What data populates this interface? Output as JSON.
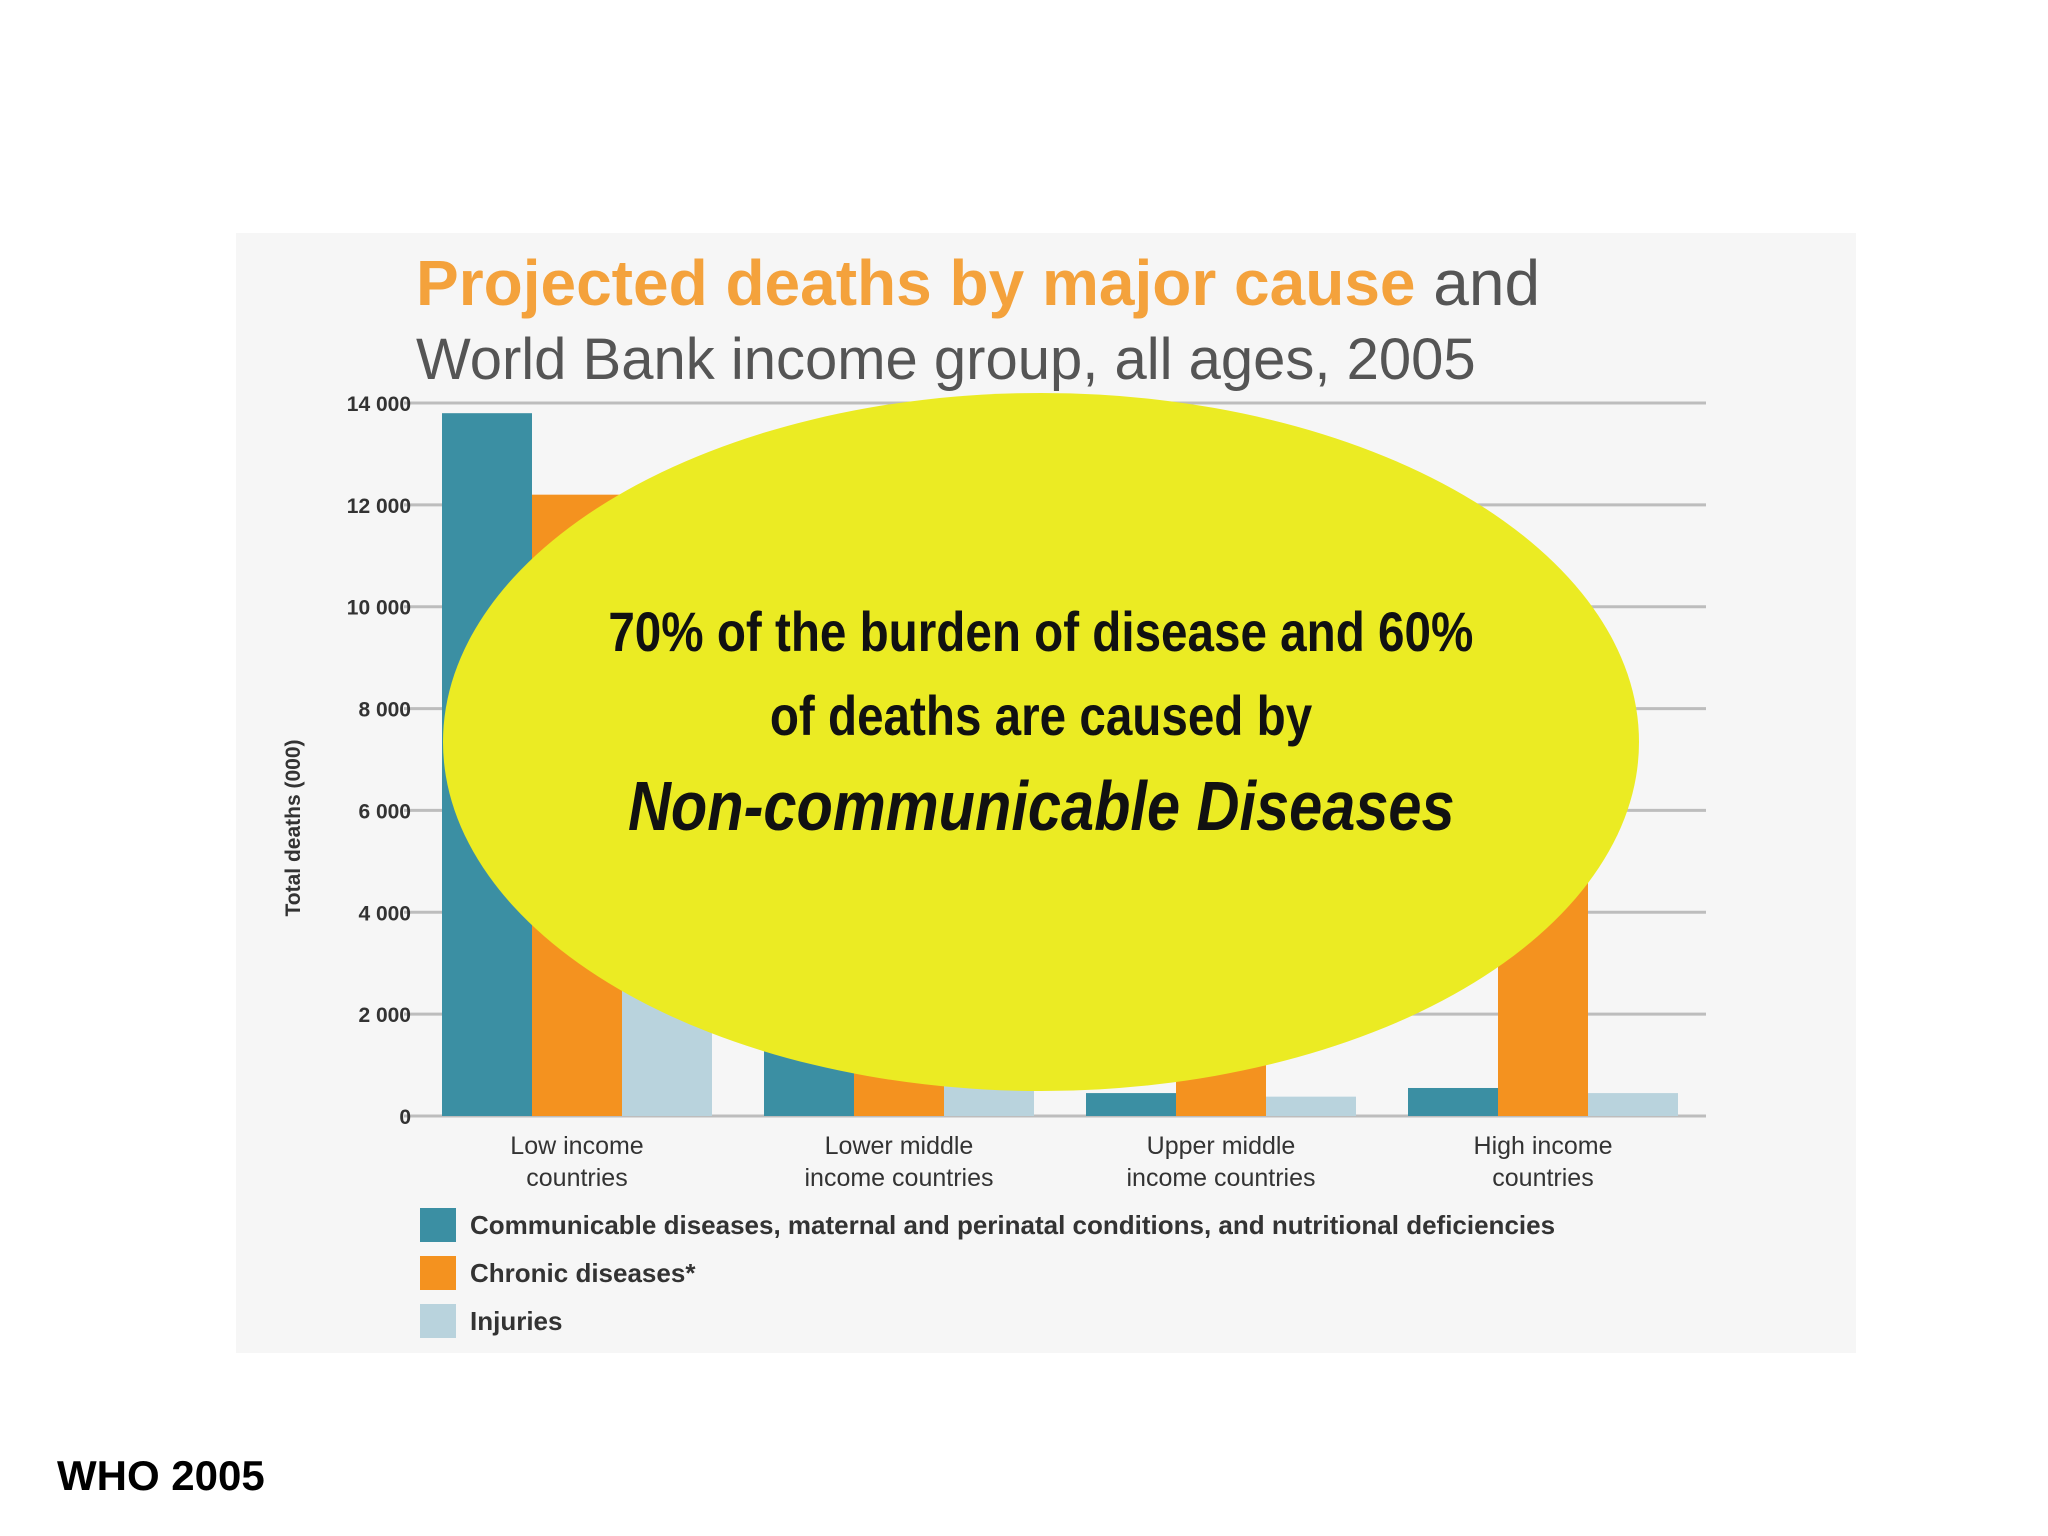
{
  "chart_data": {
    "type": "bar",
    "title_highlight": "Projected deaths by major cause",
    "title_rest": " and",
    "subtitle": "World Bank income group, all ages, 2005",
    "ylabel": "Total deaths (000)",
    "ylim": [
      0,
      14000
    ],
    "yticks": [
      0,
      2000,
      4000,
      6000,
      8000,
      10000,
      12000,
      14000
    ],
    "ytick_labels": [
      "0",
      "2 000",
      "4 000",
      "6 000",
      "8 000",
      "10 000",
      "12 000",
      "14 000"
    ],
    "categories": [
      [
        "Low income",
        "countries"
      ],
      [
        "Lower middle",
        "income countries"
      ],
      [
        "Upper middle",
        "income countries"
      ],
      [
        "High income",
        "countries"
      ]
    ],
    "series": [
      {
        "name": "Communicable diseases, maternal and perinatal conditions, and nutritional deficiencies",
        "color": "#3b8fa3",
        "values": [
          13800,
          2500,
          450,
          550
        ]
      },
      {
        "name": "Chronic diseases*",
        "color": "#f4921f",
        "values": [
          12200,
          2500,
          2800,
          6800
        ]
      },
      {
        "name": "Injuries",
        "color": "#b9d3dd",
        "values": [
          2500,
          650,
          380,
          450
        ]
      }
    ],
    "grid": true,
    "legend_position": "bottom-left"
  },
  "callout": {
    "line1": "70% of the burden of disease and 60%",
    "line2": "of deaths are caused by",
    "emphasis": "Non-communicable Diseases"
  },
  "source": "WHO 2005",
  "colors": {
    "title_highlight": "#f4a23c",
    "title_rest": "#555555",
    "callout_fill": "#ebeb23"
  }
}
